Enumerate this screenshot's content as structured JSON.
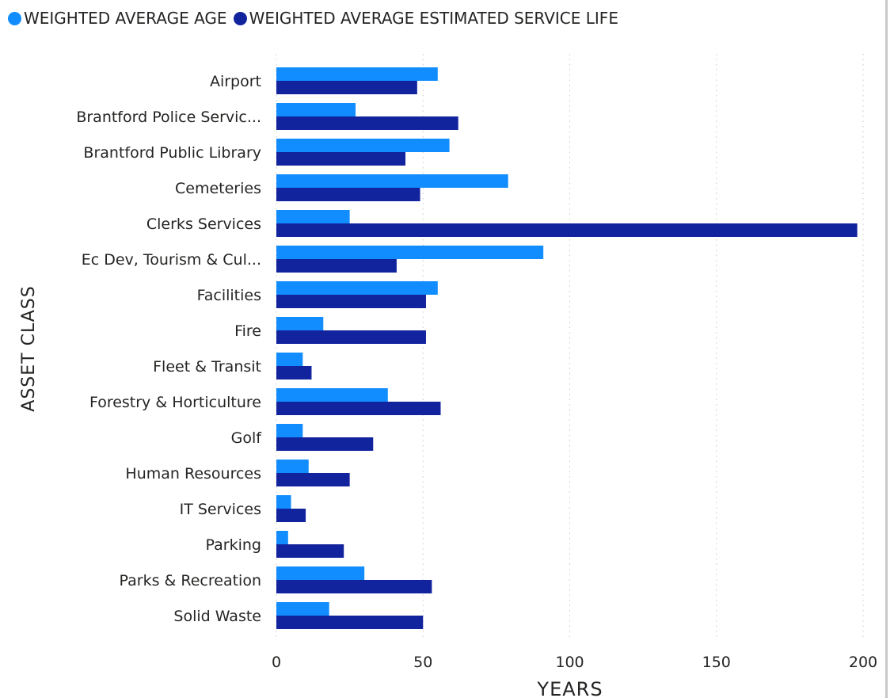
{
  "chart_data": {
    "type": "bar",
    "orientation": "horizontal",
    "categories": [
      "Airport",
      "Brantford Police Servic...",
      "Brantford Public Library",
      "Cemeteries",
      "Clerks Services",
      "Ec Dev, Tourism & Cul...",
      "Facilities",
      "Fire",
      "Fleet & Transit",
      "Forestry & Horticulture",
      "Golf",
      "Human Resources",
      "IT Services",
      "Parking",
      "Parks & Recreation",
      "Solid Waste"
    ],
    "series": [
      {
        "name": "WEIGHTED AVERAGE AGE",
        "color": "#118DFF",
        "values": [
          55,
          27,
          59,
          79,
          25,
          91,
          55,
          16,
          9,
          38,
          9,
          11,
          5,
          4,
          30,
          18
        ]
      },
      {
        "name": "WEIGHTED AVERAGE ESTIMATED SERVICE LIFE",
        "color": "#12239E",
        "values": [
          48,
          62,
          44,
          49,
          198,
          41,
          51,
          51,
          12,
          56,
          33,
          25,
          10,
          23,
          53,
          50
        ]
      }
    ],
    "xlabel": "YEARS",
    "ylabel": "ASSET CLASS",
    "xlim": [
      0,
      200
    ],
    "xticks": [
      0,
      50,
      100,
      150,
      200
    ],
    "grid": "vertical-dotted",
    "legend_position": "top-left"
  }
}
